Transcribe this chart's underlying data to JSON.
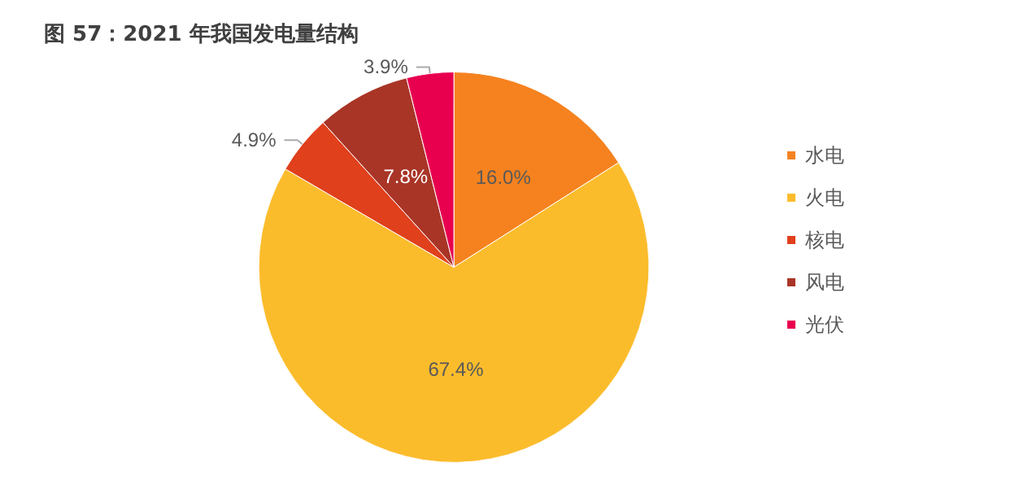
{
  "chart_data": {
    "type": "pie",
    "title": "图 57：2021 年我国发电量结构",
    "categories": [
      "水电",
      "火电",
      "核电",
      "风电",
      "光伏"
    ],
    "values": [
      16.0,
      67.4,
      4.9,
      7.8,
      3.9
    ],
    "value_labels": [
      "16.0%",
      "67.4%",
      "4.9%",
      "7.8%",
      "3.9%"
    ],
    "colors": [
      "#f5821f",
      "#fbbc2c",
      "#e0401c",
      "#a93527",
      "#e8004f"
    ],
    "legend": "right"
  }
}
